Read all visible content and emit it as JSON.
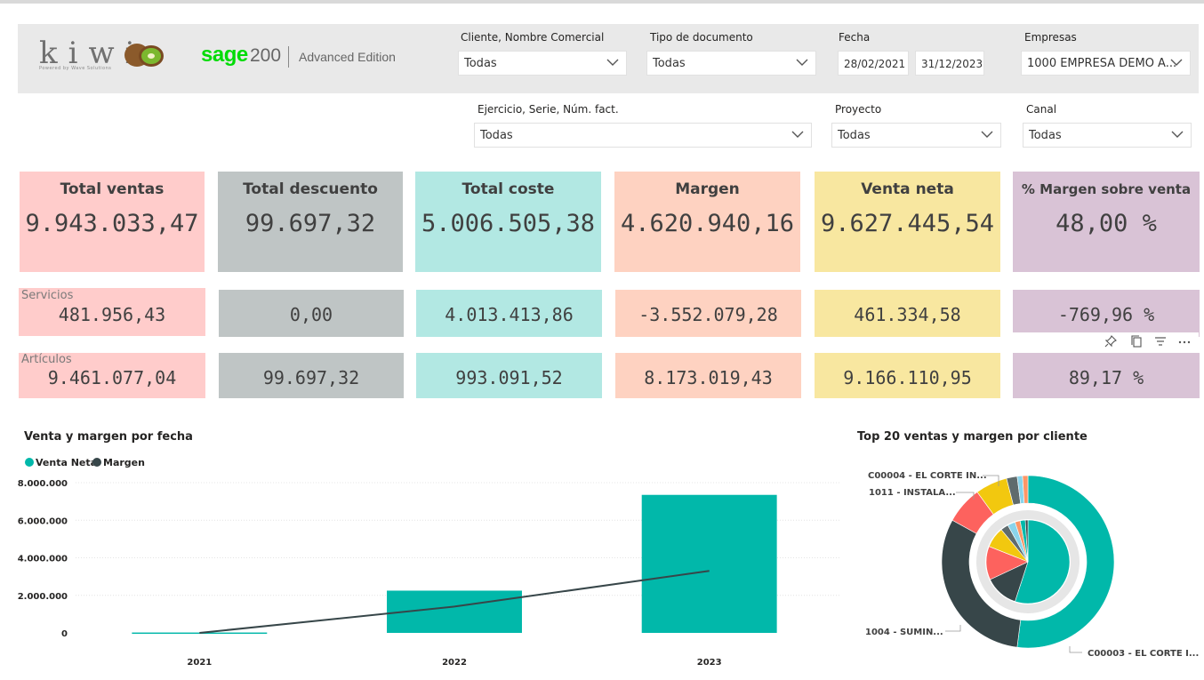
{
  "header": {
    "logo_text": "kiwi",
    "logo_subtext": "Powered by Wave Solutions",
    "sage_brand": "sage",
    "sage_version": "200",
    "sage_edition": "Advanced Edition"
  },
  "filters": {
    "cliente": {
      "label": "Cliente, Nombre Comercial",
      "value": "Todas"
    },
    "tipo_documento": {
      "label": "Tipo de documento",
      "value": "Todas"
    },
    "fecha": {
      "label": "Fecha",
      "from": "28/02/2021",
      "to": "31/12/2023"
    },
    "empresas": {
      "label": "Empresas",
      "value": "1000 EMPRESA DEMO A..."
    },
    "ejercicio": {
      "label": "Ejercicio, Serie, Núm. fact.",
      "value": "Todas"
    },
    "proyecto": {
      "label": "Proyecto",
      "value": "Todas"
    },
    "canal": {
      "label": "Canal",
      "value": "Todas"
    }
  },
  "kpis": [
    {
      "title": "Total ventas",
      "value": "9.943.033,47",
      "servicios": "481.956,43",
      "articulos": "9.461.077,04",
      "color": "#ffcccb"
    },
    {
      "title": "Total descuento",
      "value": "99.697,32",
      "servicios": "0,00",
      "articulos": "99.697,32",
      "color": "#bfc5c5"
    },
    {
      "title": "Total coste",
      "value": "5.006.505,38",
      "servicios": "4.013.413,86",
      "articulos": "993.091,52",
      "color": "#b2e8e3"
    },
    {
      "title": "Margen",
      "value": "4.620.940,16",
      "servicios": "-3.552.079,28",
      "articulos": "8.173.019,43",
      "color": "#fed2c1"
    },
    {
      "title": "Venta neta",
      "value": "9.627.445,54",
      "servicios": "461.334,58",
      "articulos": "9.166.110,95",
      "color": "#f8e7a0"
    },
    {
      "title": "% Margen sobre venta",
      "value": "48,00 %",
      "servicios": "-769,96 %",
      "articulos": "89,17 %",
      "color": "#d9c3d6"
    }
  ],
  "row_labels": {
    "servicios": "Servicios",
    "articulos": "Artículos"
  },
  "icons": {
    "pin": "pin-icon",
    "copy": "copy-icon",
    "filter": "filter-icon",
    "more": "more-options-icon",
    "chevron": "chevron-down-icon"
  },
  "chart_data": [
    {
      "type": "bar",
      "title": "Venta y margen por fecha",
      "categories": [
        "2021",
        "2022",
        "2023"
      ],
      "series": [
        {
          "name": "Venta Neta",
          "type": "bar",
          "values": [
            20000,
            2250000,
            7350000
          ],
          "color": "#01b8aa"
        },
        {
          "name": "Margen",
          "type": "line",
          "values": [
            0,
            1400000,
            3300000
          ],
          "color": "#374649"
        }
      ],
      "y_ticks": [
        "0",
        "2.000.000",
        "4.000.000",
        "6.000.000",
        "8.000.000"
      ],
      "ylim": [
        0,
        8000000
      ],
      "grid": true,
      "legend": "top-left"
    },
    {
      "type": "pie",
      "title": "Top 20 ventas y margen por cliente",
      "labels": [
        "C00004 - EL CORTE IN...",
        "1011 - INSTALA...",
        "1004 - SUMIN...",
        "C00003 - EL CORTE I..."
      ],
      "outer_values": [
        52,
        31,
        7,
        6,
        2,
        1,
        1
      ],
      "inner_values": [
        55,
        13,
        13,
        8,
        3,
        3,
        2,
        2,
        1
      ],
      "colors": [
        "#01b8aa",
        "#374649",
        "#fd625e",
        "#f2c80f",
        "#5f6b6d",
        "#8ad4eb",
        "#fe9666"
      ]
    }
  ]
}
